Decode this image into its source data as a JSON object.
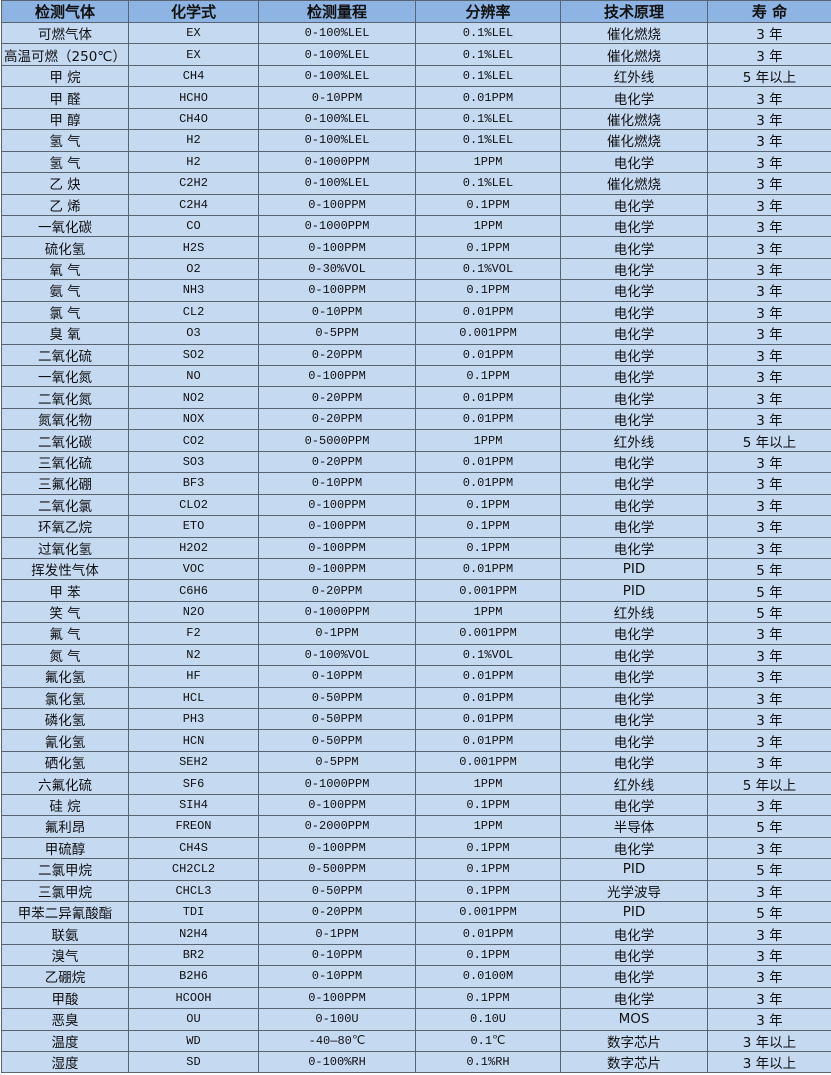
{
  "table": {
    "headers": [
      "检测气体",
      "化学式",
      "检测量程",
      "分辨率",
      "技术原理",
      "寿 命"
    ],
    "rows": [
      [
        "可燃气体",
        "EX",
        "0-100%LEL",
        "0.1%LEL",
        "催化燃烧",
        "3 年"
      ],
      [
        "高温可燃（250℃）",
        "EX",
        "0-100%LEL",
        "0.1%LEL",
        "催化燃烧",
        "3 年"
      ],
      [
        "甲 烷",
        "CH4",
        "0-100%LEL",
        "0.1%LEL",
        "红外线",
        "5 年以上"
      ],
      [
        "甲 醛",
        "HCHO",
        "0-10PPM",
        "0.01PPM",
        "电化学",
        "3 年"
      ],
      [
        "甲 醇",
        "CH4O",
        "0-100%LEL",
        "0.1%LEL",
        "催化燃烧",
        "3 年"
      ],
      [
        "氢 气",
        "H2",
        "0-100%LEL",
        "0.1%LEL",
        "催化燃烧",
        "3 年"
      ],
      [
        "氢 气",
        "H2",
        "0-1000PPM",
        "1PPM",
        "电化学",
        "3 年"
      ],
      [
        "乙 炔",
        "C2H2",
        "0-100%LEL",
        "0.1%LEL",
        "催化燃烧",
        "3 年"
      ],
      [
        "乙 烯",
        "C2H4",
        "0-100PPM",
        "0.1PPM",
        "电化学",
        "3 年"
      ],
      [
        "一氧化碳",
        "CO",
        "0-1000PPM",
        "1PPM",
        "电化学",
        "3 年"
      ],
      [
        "硫化氢",
        "H2S",
        "0-100PPM",
        "0.1PPM",
        "电化学",
        "3 年"
      ],
      [
        "氧 气",
        "O2",
        "0-30%VOL",
        "0.1%VOL",
        "电化学",
        "3 年"
      ],
      [
        "氨 气",
        "NH3",
        "0-100PPM",
        "0.1PPM",
        "电化学",
        "3 年"
      ],
      [
        "氯 气",
        "CL2",
        "0-10PPM",
        "0.01PPM",
        "电化学",
        "3 年"
      ],
      [
        "臭 氧",
        "O3",
        "0-5PPM",
        "0.001PPM",
        "电化学",
        "3 年"
      ],
      [
        "二氧化硫",
        "SO2",
        "0-20PPM",
        "0.01PPM",
        "电化学",
        "3 年"
      ],
      [
        "一氧化氮",
        "NO",
        "0-100PPM",
        "0.1PPM",
        "电化学",
        "3 年"
      ],
      [
        "二氧化氮",
        "NO2",
        "0-20PPM",
        "0.01PPM",
        "电化学",
        "3 年"
      ],
      [
        "氮氧化物",
        "NOX",
        "0-20PPM",
        "0.01PPM",
        "电化学",
        "3 年"
      ],
      [
        "二氧化碳",
        "CO2",
        "0-5000PPM",
        "1PPM",
        "红外线",
        "5 年以上"
      ],
      [
        "三氧化硫",
        "SO3",
        "0-20PPM",
        "0.01PPM",
        "电化学",
        "3 年"
      ],
      [
        "三氟化硼",
        "BF3",
        "0-10PPM",
        "0.01PPM",
        "电化学",
        "3 年"
      ],
      [
        "二氧化氯",
        "CLO2",
        "0-100PPM",
        "0.1PPM",
        "电化学",
        "3 年"
      ],
      [
        "环氧乙烷",
        "ETO",
        "0-100PPM",
        "0.1PPM",
        "电化学",
        "3 年"
      ],
      [
        "过氧化氢",
        "H2O2",
        "0-100PPM",
        "0.1PPM",
        "电化学",
        "3 年"
      ],
      [
        "挥发性气体",
        "VOC",
        "0-100PPM",
        "0.01PPM",
        "PID",
        "5 年"
      ],
      [
        "甲 苯",
        "C6H6",
        "0-20PPM",
        "0.001PPM",
        "PID",
        "5 年"
      ],
      [
        "笑 气",
        "N2O",
        "0-1000PPM",
        "1PPM",
        "红外线",
        "5 年"
      ],
      [
        "氟 气",
        "F2",
        "0-1PPM",
        "0.001PPM",
        "电化学",
        "3 年"
      ],
      [
        "氮 气",
        "N2",
        "0-100%VOL",
        "0.1%VOL",
        "电化学",
        "3 年"
      ],
      [
        "氟化氢",
        "HF",
        "0-10PPM",
        "0.01PPM",
        "电化学",
        "3 年"
      ],
      [
        "氯化氢",
        "HCL",
        "0-50PPM",
        "0.01PPM",
        "电化学",
        "3 年"
      ],
      [
        "磷化氢",
        "PH3",
        "0-50PPM",
        "0.01PPM",
        "电化学",
        "3 年"
      ],
      [
        "氰化氢",
        "HCN",
        "0-50PPM",
        "0.01PPM",
        "电化学",
        "3 年"
      ],
      [
        "硒化氢",
        "SEH2",
        "0-5PPM",
        "0.001PPM",
        "电化学",
        "3 年"
      ],
      [
        "六氟化硫",
        "SF6",
        "0-1000PPM",
        "1PPM",
        "红外线",
        "5 年以上"
      ],
      [
        "硅 烷",
        "SIH4",
        "0-100PPM",
        "0.1PPM",
        "电化学",
        "3 年"
      ],
      [
        "氟利昂",
        "FREON",
        "0-2000PPM",
        "1PPM",
        "半导体",
        "5 年"
      ],
      [
        "甲硫醇",
        "CH4S",
        "0-100PPM",
        "0.1PPM",
        "电化学",
        "3 年"
      ],
      [
        "二氯甲烷",
        "CH2CL2",
        "0-500PPM",
        "0.1PPM",
        "PID",
        "5 年"
      ],
      [
        "三氯甲烷",
        "CHCL3",
        "0-50PPM",
        "0.1PPM",
        "光学波导",
        "3 年"
      ],
      [
        "甲苯二异氰酸酯",
        "TDI",
        "0-20PPM",
        "0.001PPM",
        "PID",
        "5 年"
      ],
      [
        "联氨",
        "N2H4",
        "0-1PPM",
        "0.01PPM",
        "电化学",
        "3 年"
      ],
      [
        "溴气",
        "BR2",
        "0-10PPM",
        "0.1PPM",
        "电化学",
        "3 年"
      ],
      [
        "乙硼烷",
        "B2H6",
        "0-10PPM",
        "0.0100M",
        "电化学",
        "3 年"
      ],
      [
        "甲酸",
        "HCOOH",
        "0-100PPM",
        "0.1PPM",
        "电化学",
        "3 年"
      ],
      [
        "恶臭",
        "OU",
        "0-100U",
        "0.10U",
        "MOS",
        "3 年"
      ],
      [
        "温度",
        "WD",
        "-40—80℃",
        "0.1℃",
        "数字芯片",
        "3 年以上"
      ],
      [
        "湿度",
        "SD",
        "0-100%RH",
        "0.1%RH",
        "数字芯片",
        "3 年以上"
      ]
    ]
  },
  "colors": {
    "header_bg": "#8db4e2",
    "row_bg": "#c5d9f1",
    "border": "#5a6470"
  }
}
